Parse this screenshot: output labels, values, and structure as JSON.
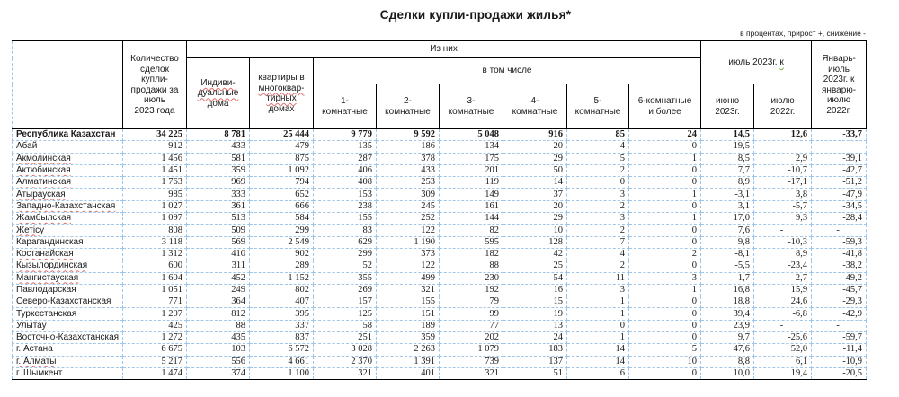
{
  "title": "Сделки купли-продажи жилья*",
  "note": "в процентах, прирост +, снижение -",
  "colors": {
    "grid_blue": "#9fc5e8",
    "border_black": "#000000",
    "spellcheck_red": "#e06c6c",
    "spellcheck_green": "#70ad47"
  },
  "table": {
    "header": {
      "total": "Количество\nсделок\nкупли-\nпродажи за\nиюль\n2023 года",
      "of_them": "Из них",
      "including": "в том числе",
      "individual_top": "Индиви-\nдуальные",
      "individual_bottom": "дома",
      "apartments_top": "квартиры в",
      "apartments_mid": "многоквар-\nтирных",
      "apartments_bottom": "домах",
      "rooms": [
        "1-\nкомнатные",
        "2-\nкомнатные",
        "3-\nкомнатные",
        "4-\nкомнатные",
        "5-\nкомнатные",
        "6-комнатные\nи более"
      ],
      "july_to": "июль 2023г.",
      "july_to_suffix": "к",
      "june_2023": "июню\n2023г.",
      "july_2022": "июлю\n2022г.",
      "jan_july": "Январь-\nиюль\n2023г. к\nянварю-\nиюлю\n2022г."
    },
    "rows": [
      {
        "region": "Республика Казахстан",
        "bold": true,
        "sp": false,
        "values": [
          "34 225",
          "8 781",
          "25 444",
          "9 779",
          "9 592",
          "5 048",
          "916",
          "85",
          "24",
          "14,5",
          "12,6",
          "-33,7"
        ]
      },
      {
        "region": "Абай",
        "bold": false,
        "sp": false,
        "values": [
          "912",
          "433",
          "479",
          "135",
          "186",
          "134",
          "20",
          "4",
          "0",
          "19,5",
          "-",
          "-"
        ]
      },
      {
        "region": "Акмолинская",
        "bold": false,
        "sp": true,
        "values": [
          "1 456",
          "581",
          "875",
          "287",
          "378",
          "175",
          "29",
          "5",
          "1",
          "8,5",
          "2,9",
          "-39,1"
        ]
      },
      {
        "region": "Актюбинская",
        "bold": false,
        "sp": true,
        "values": [
          "1 451",
          "359",
          "1 092",
          "406",
          "433",
          "201",
          "50",
          "2",
          "0",
          "7,7",
          "-10,7",
          "-42,7"
        ]
      },
      {
        "region": "Алматинская",
        "bold": false,
        "sp": true,
        "values": [
          "1 763",
          "969",
          "794",
          "408",
          "253",
          "119",
          "14",
          "0",
          "0",
          "8,9",
          "-17,1",
          "-51,2"
        ]
      },
      {
        "region": "Атырауская",
        "bold": false,
        "sp": true,
        "values": [
          "985",
          "333",
          "652",
          "153",
          "309",
          "149",
          "37",
          "3",
          "1",
          "-3,1",
          "3,8",
          "-47,9"
        ]
      },
      {
        "region": "Западно-Казахстанская",
        "bold": false,
        "sp": true,
        "values": [
          "1 027",
          "361",
          "666",
          "238",
          "245",
          "161",
          "20",
          "2",
          "0",
          "3,1",
          "-5,7",
          "-34,5"
        ]
      },
      {
        "region": "Жамбылская",
        "bold": false,
        "sp": true,
        "values": [
          "1 097",
          "513",
          "584",
          "155",
          "252",
          "144",
          "29",
          "3",
          "1",
          "17,0",
          "9,3",
          "-28,4"
        ]
      },
      {
        "region": "Жетісу",
        "bold": false,
        "sp": true,
        "values": [
          "808",
          "509",
          "299",
          "83",
          "122",
          "82",
          "10",
          "2",
          "0",
          "7,6",
          "-",
          "-"
        ]
      },
      {
        "region": "Карагандинская",
        "bold": false,
        "sp": false,
        "values": [
          "3 118",
          "569",
          "2 549",
          "629",
          "1 190",
          "595",
          "128",
          "7",
          "0",
          "9,8",
          "-10,3",
          "-59,3"
        ]
      },
      {
        "region": "Костанайская",
        "bold": false,
        "sp": true,
        "values": [
          "1 312",
          "410",
          "902",
          "299",
          "373",
          "182",
          "42",
          "4",
          "2",
          "-8,1",
          "8,9",
          "-41,8"
        ]
      },
      {
        "region": "Кызылординская",
        "bold": false,
        "sp": true,
        "values": [
          "600",
          "311",
          "289",
          "52",
          "122",
          "88",
          "25",
          "2",
          "0",
          "-5,5",
          "-23,4",
          "-38,2"
        ]
      },
      {
        "region": "Мангистауская",
        "bold": false,
        "sp": true,
        "values": [
          "1 604",
          "452",
          "1 152",
          "355",
          "499",
          "230",
          "54",
          "11",
          "3",
          "-1,7",
          "-2,7",
          "-49,2"
        ]
      },
      {
        "region": "Павлодарская",
        "bold": false,
        "sp": false,
        "values": [
          "1 051",
          "249",
          "802",
          "269",
          "321",
          "192",
          "16",
          "3",
          "1",
          "16,8",
          "15,9",
          "-45,7"
        ]
      },
      {
        "region": "Северо-Казахстанская",
        "bold": false,
        "sp": false,
        "values": [
          "771",
          "364",
          "407",
          "157",
          "155",
          "79",
          "15",
          "1",
          "0",
          "18,8",
          "24,6",
          "-29,3"
        ]
      },
      {
        "region": "Туркестанская",
        "bold": false,
        "sp": false,
        "values": [
          "1 207",
          "812",
          "395",
          "125",
          "151",
          "99",
          "19",
          "1",
          "0",
          "39,4",
          "-6,8",
          "-42,9"
        ]
      },
      {
        "region": "Улытау",
        "bold": false,
        "sp": true,
        "values": [
          "425",
          "88",
          "337",
          "58",
          "189",
          "77",
          "13",
          "0",
          "0",
          "23,9",
          "-",
          "-"
        ]
      },
      {
        "region": "Восточно-Казахстанская",
        "bold": false,
        "sp": false,
        "values": [
          "1 272",
          "435",
          "837",
          "251",
          "359",
          "202",
          "24",
          "1",
          "0",
          "9,7",
          "-25,6",
          "-59,7"
        ]
      },
      {
        "region": "г. Астана",
        "bold": false,
        "sp": false,
        "values": [
          "6 675",
          "103",
          "6 572",
          "3 028",
          "2 263",
          "1 079",
          "183",
          "14",
          "5",
          "47,6",
          "52,0",
          "-11,4"
        ]
      },
      {
        "region": "г. Алматы",
        "bold": false,
        "sp": true,
        "values": [
          "5 217",
          "556",
          "4 661",
          "2 370",
          "1 391",
          "739",
          "137",
          "14",
          "10",
          "8,8",
          "6,1",
          "-10,9"
        ]
      },
      {
        "region": "г. Шымкент",
        "bold": false,
        "sp": false,
        "values": [
          "1 474",
          "374",
          "1 100",
          "321",
          "401",
          "321",
          "51",
          "6",
          "0",
          "10,0",
          "19,4",
          "-20,5"
        ]
      }
    ]
  }
}
